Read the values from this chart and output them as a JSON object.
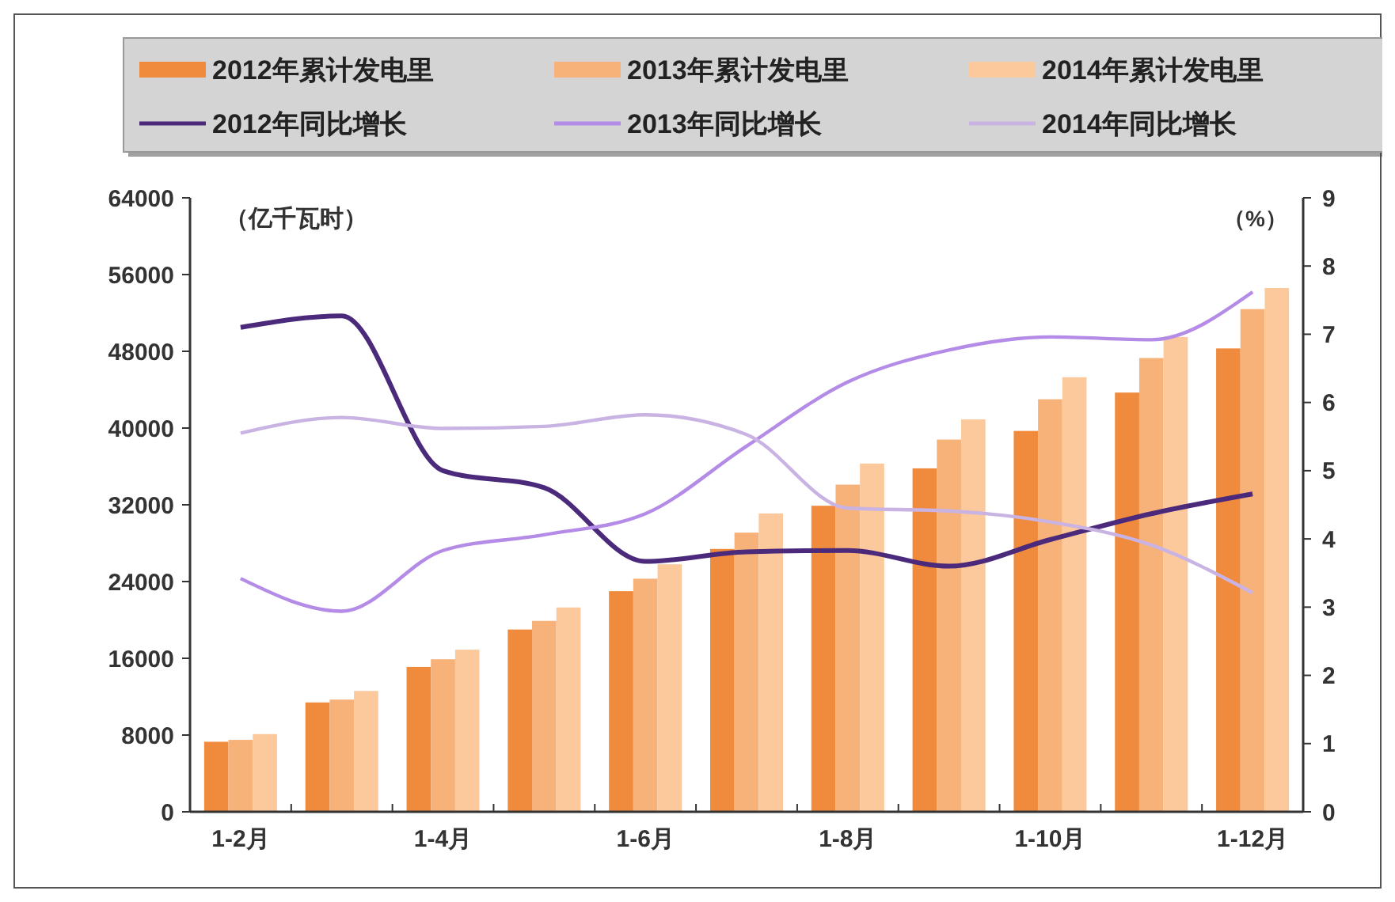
{
  "chart_data": {
    "type": "bar",
    "ylabel": "（亿千瓦时）",
    "y2label": "（%）",
    "categories": [
      "1-2月",
      null,
      "1-4月",
      null,
      "1-6月",
      null,
      "1-8月",
      null,
      "1-10月",
      null,
      "1-12月"
    ],
    "series": [
      {
        "name": "2012年累计发电里",
        "color": "#f08a3c",
        "values": [
          7300,
          11400,
          15100,
          19000,
          23000,
          27400,
          31900,
          35800,
          39700,
          43700,
          48300
        ]
      },
      {
        "name": "2013年累计发电里",
        "color": "#f7b27a",
        "values": [
          7500,
          11700,
          15900,
          19900,
          24300,
          29100,
          34100,
          38800,
          43000,
          47300,
          52400
        ]
      },
      {
        "name": "2014年累计发电里",
        "color": "#fcc99d",
        "values": [
          8100,
          12600,
          16900,
          21300,
          25800,
          31100,
          36300,
          40900,
          45300,
          49500,
          54600
        ]
      },
      {
        "name": "2012年同比增长",
        "type": "line",
        "axis": "y2",
        "color": "#4b2a7b",
        "values": [
          7.1,
          7.27,
          5.0,
          4.75,
          3.67,
          3.81,
          3.83,
          3.6,
          3.99,
          4.37,
          4.66
        ]
      },
      {
        "name": "2013年同比增长",
        "type": "line",
        "axis": "y2",
        "color": "#b48be6",
        "values": [
          3.42,
          2.94,
          3.83,
          4.06,
          4.37,
          5.36,
          6.3,
          6.77,
          6.96,
          6.92,
          7.62
        ]
      },
      {
        "name": "2014年同比增长",
        "type": "line",
        "axis": "y2",
        "color": "#c9b3e3",
        "values": [
          5.55,
          5.78,
          5.62,
          5.65,
          5.82,
          5.53,
          4.45,
          4.41,
          4.25,
          3.91,
          3.21
        ]
      }
    ],
    "ylim": [
      0,
      64000
    ],
    "yticks": [
      0,
      8000,
      16000,
      24000,
      32000,
      40000,
      48000,
      56000,
      64000
    ],
    "y2lim": [
      0,
      9
    ],
    "y2ticks": [
      0,
      1,
      2,
      3,
      4,
      5,
      6,
      7,
      8,
      9
    ],
    "grid": false,
    "legend": "top",
    "marker": "none",
    "line_style": "solid"
  }
}
